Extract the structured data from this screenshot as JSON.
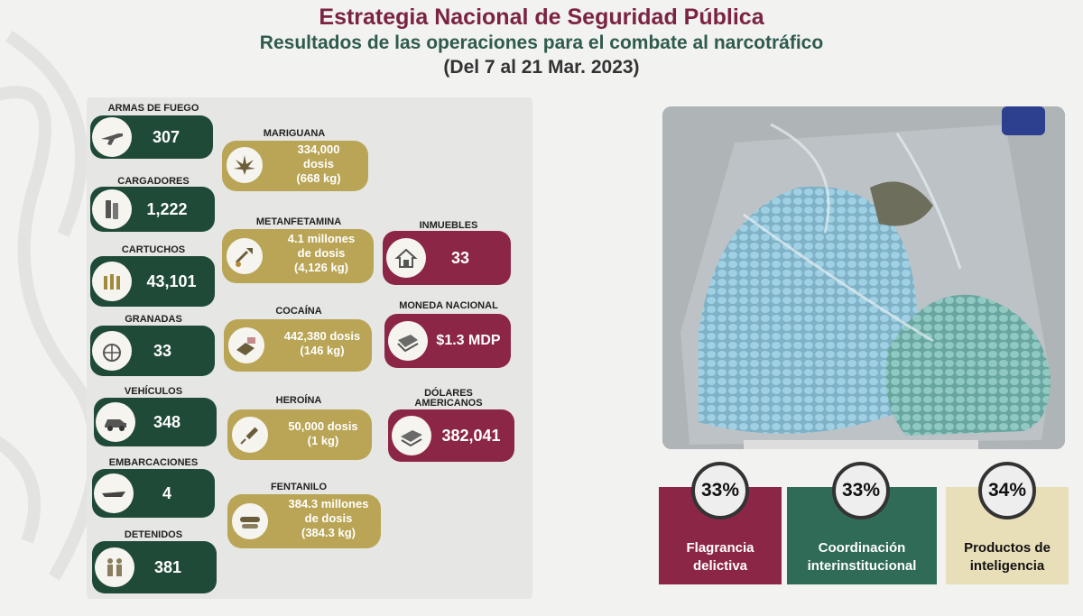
{
  "header": {
    "title": "Estrategia Nacional de Seguridad Pública",
    "subtitle": "Resultados de las operaciones para el combate al narcotráfico",
    "dates": "(Del 7 al 21 Mar. 2023)"
  },
  "col1": [
    {
      "label": "ARMAS DE FUEGO",
      "value": "307",
      "icon": "rifle-icon"
    },
    {
      "label": "CARGADORES",
      "value": "1,222",
      "icon": "magazine-icon"
    },
    {
      "label": "CARTUCHOS",
      "value": "43,101",
      "icon": "cartridges-icon"
    },
    {
      "label": "GRANADAS",
      "value": "33",
      "icon": "grenade-icon"
    },
    {
      "label": "VEHÍCULOS",
      "value": "348",
      "icon": "vehicle-icon"
    },
    {
      "label": "EMBARCACIONES",
      "value": "4",
      "icon": "boat-icon"
    },
    {
      "label": "DETENIDOS",
      "value": "381",
      "icon": "detainees-icon"
    }
  ],
  "col2": [
    {
      "label": "MARIGUANA",
      "line1": "334,000",
      "line2": "dosis",
      "line3": "(668 kg)",
      "icon": "cannabis-leaf-icon"
    },
    {
      "label": "METANFETAMINA",
      "line1": "4.1 millones",
      "line2": "de dosis",
      "line3": "(4,126 kg)",
      "icon": "shovel-icon"
    },
    {
      "label": "COCAÍNA",
      "line1": "442,380 dosis",
      "line2": "(146 kg)",
      "line3": "",
      "icon": "cocaine-brick-icon"
    },
    {
      "label": "HEROÍNA",
      "line1": "50,000 dosis",
      "line2": "(1 kg)",
      "line3": "",
      "icon": "syringe-icon"
    },
    {
      "label": "FENTANILO",
      "line1": "384.3 millones",
      "line2": "de dosis",
      "line3": "(384.3 kg)",
      "icon": "pills-icon"
    }
  ],
  "col3": [
    {
      "label": "INMUEBLES",
      "value": "33",
      "icon": "house-icon"
    },
    {
      "label": "MONEDA NACIONAL",
      "value": "$1.3 MDP",
      "icon": "cash-icon"
    },
    {
      "label": "DÓLARES",
      "label2": "AMERICANOS",
      "value": "382,041",
      "icon": "dollars-icon"
    }
  ],
  "percentages": [
    {
      "pct": "33%",
      "line1": "Flagrancia",
      "line2": "delictiva",
      "color": "#8c2646",
      "text_color": "#ffffff"
    },
    {
      "pct": "33%",
      "line1": "Coordinación",
      "line2": "interinstitucional",
      "color": "#2f6b57",
      "text_color": "#ffffff"
    },
    {
      "pct": "34%",
      "line1": "Productos de",
      "line2": "inteligencia",
      "color": "#e8dfb8",
      "text_color": "#111111"
    }
  ],
  "colors": {
    "guinda": "#7b2342",
    "green": "#1f4a38",
    "gold": "#b9a555",
    "red": "#8c2646"
  }
}
